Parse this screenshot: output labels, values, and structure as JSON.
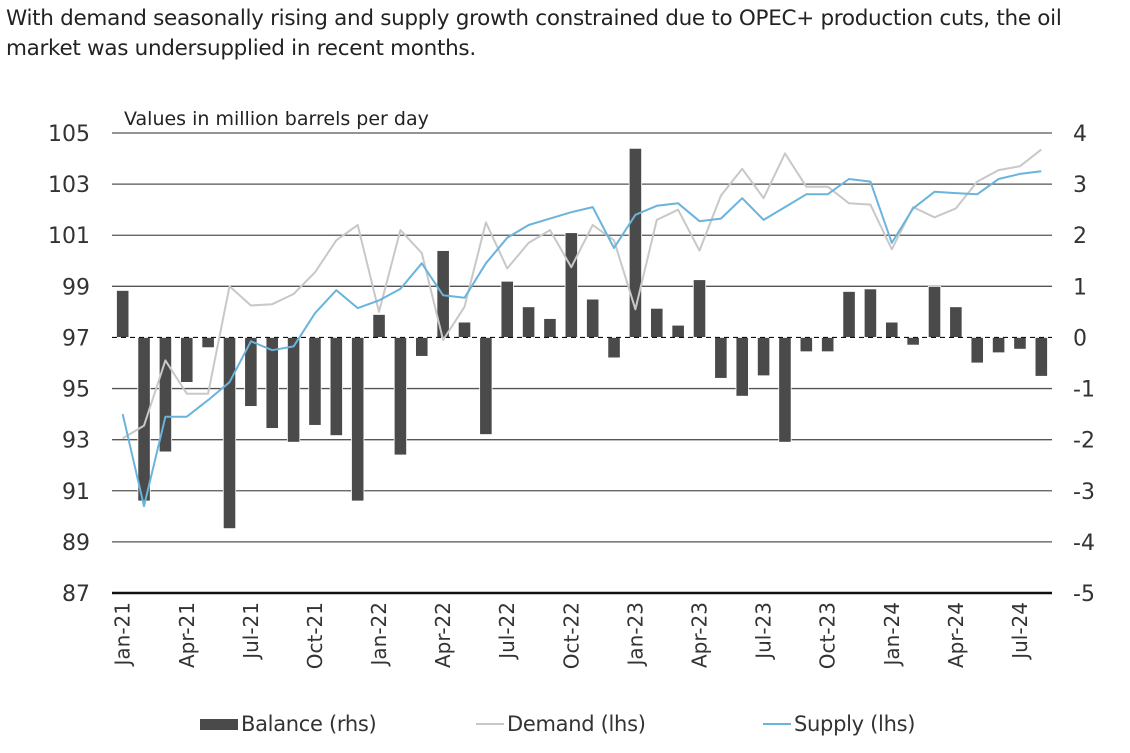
{
  "caption": "With demand seasonally rising and supply growth constrained due to OPEC+ production cuts, the oil market was undersupplied in recent months.",
  "chart_data": {
    "type": "bar+line",
    "title": "",
    "unit_label": "Values in million barrels per day",
    "x": [
      "Jan-21",
      "Feb-21",
      "Mar-21",
      "Apr-21",
      "May-21",
      "Jun-21",
      "Jul-21",
      "Aug-21",
      "Sep-21",
      "Oct-21",
      "Nov-21",
      "Dec-21",
      "Jan-22",
      "Feb-22",
      "Mar-22",
      "Apr-22",
      "May-22",
      "Jun-22",
      "Jul-22",
      "Aug-22",
      "Sep-22",
      "Oct-22",
      "Nov-22",
      "Dec-22",
      "Jan-23",
      "Feb-23",
      "Mar-23",
      "Apr-23",
      "May-23",
      "Jun-23",
      "Jul-23",
      "Aug-23",
      "Sep-23",
      "Oct-23",
      "Nov-23",
      "Dec-23",
      "Jan-24",
      "Feb-24",
      "Mar-24",
      "Apr-24",
      "May-24",
      "Jun-24",
      "Jul-24",
      "Aug-24"
    ],
    "x_tick_labels": [
      "Jan-21",
      "Apr-21",
      "Jul-21",
      "Oct-21",
      "Jan-22",
      "Apr-22",
      "Jul-22",
      "Oct-22",
      "Jan-23",
      "Apr-23",
      "Jul-23",
      "Oct-23",
      "Jan-24",
      "Apr-24",
      "Jul-24"
    ],
    "left_axis": {
      "label": "lhs",
      "ylim": [
        87,
        105
      ],
      "ticks": [
        87,
        89,
        91,
        93,
        95,
        97,
        99,
        101,
        103,
        105
      ]
    },
    "right_axis": {
      "label": "rhs",
      "ylim": [
        -5,
        4
      ],
      "ticks": [
        -5,
        -4,
        -3,
        -2,
        -1,
        0,
        1,
        2,
        3,
        4
      ]
    },
    "grid": true,
    "legend_position": "bottom",
    "series": [
      {
        "name": "Balance (rhs)",
        "type": "bar",
        "axis": "right",
        "color": "#4a4a4a",
        "values": [
          0.92,
          -3.2,
          -2.24,
          -0.88,
          -0.2,
          -3.74,
          -1.35,
          -1.78,
          -2.05,
          -1.72,
          -1.92,
          -3.2,
          0.45,
          -2.3,
          -0.37,
          1.7,
          0.3,
          -1.9,
          1.1,
          0.6,
          0.37,
          2.05,
          0.75,
          -0.4,
          3.7,
          0.57,
          0.24,
          1.13,
          -0.8,
          -1.15,
          -0.75,
          -2.05,
          -0.28,
          -0.28,
          0.9,
          0.95,
          0.3,
          -0.15,
          1.0,
          0.6,
          -0.5,
          -0.3,
          -0.23,
          -0.76
        ]
      },
      {
        "name": "Demand (lhs)",
        "type": "line",
        "axis": "left",
        "color": "#c8c8c8",
        "values": [
          93.05,
          93.55,
          96.1,
          94.8,
          94.8,
          99.0,
          98.25,
          98.3,
          98.7,
          99.55,
          100.8,
          101.4,
          98.0,
          101.2,
          100.3,
          96.9,
          98.2,
          101.5,
          99.7,
          100.7,
          101.2,
          99.75,
          101.4,
          100.8,
          98.1,
          101.6,
          102.0,
          100.4,
          102.55,
          103.6,
          102.45,
          104.2,
          102.9,
          102.9,
          102.25,
          102.2,
          100.45,
          102.1,
          101.7,
          102.05,
          103.1,
          103.55,
          103.7,
          104.35
        ]
      },
      {
        "name": "Supply (lhs)",
        "type": "line",
        "axis": "left",
        "color": "#6ab4dc",
        "values": [
          94.0,
          90.4,
          93.9,
          93.9,
          94.55,
          95.25,
          96.85,
          96.5,
          96.65,
          97.95,
          98.85,
          98.15,
          98.45,
          98.9,
          99.9,
          98.65,
          98.55,
          99.9,
          100.9,
          101.4,
          101.65,
          101.9,
          102.1,
          100.5,
          101.8,
          102.15,
          102.25,
          101.55,
          101.65,
          102.45,
          101.6,
          102.1,
          102.6,
          102.6,
          103.2,
          103.1,
          100.7,
          102.05,
          102.7,
          102.65,
          102.6,
          103.2,
          103.4,
          103.5
        ]
      }
    ]
  }
}
